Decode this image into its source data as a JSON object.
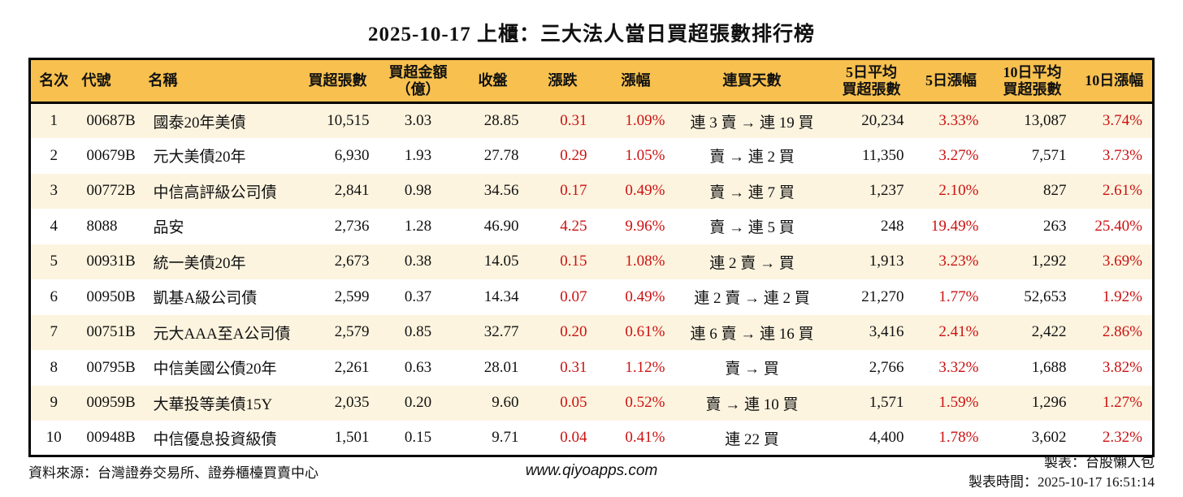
{
  "title": "2025-10-17 上櫃：三大法人當日買超張數排行榜",
  "colors": {
    "header_bg": "#F7C04F",
    "row_alt_bg": "#FCF4DF",
    "up_red": "#CC1111"
  },
  "table": {
    "columns": [
      {
        "id": "rank",
        "label": "名次",
        "align": "center",
        "red": false
      },
      {
        "id": "code",
        "label": "代號",
        "align": "left",
        "red": false
      },
      {
        "id": "name",
        "label": "名稱",
        "align": "left",
        "red": false
      },
      {
        "id": "net_buy",
        "label": "買超張數",
        "align": "right",
        "red": false
      },
      {
        "id": "amount",
        "label": "買超金額\n（億）",
        "align": "center",
        "red": false
      },
      {
        "id": "close",
        "label": "收盤",
        "align": "right",
        "red": false
      },
      {
        "id": "change",
        "label": "漲跌",
        "align": "right",
        "red": true
      },
      {
        "id": "change_pct",
        "label": "漲幅",
        "align": "right",
        "red": true
      },
      {
        "id": "streak",
        "label": "連買天數",
        "align": "center",
        "red": false
      },
      {
        "id": "avg5",
        "label": "5日平均\n買超張數",
        "align": "right",
        "red": false
      },
      {
        "id": "pct5",
        "label": "5日漲幅",
        "align": "right",
        "red": true
      },
      {
        "id": "avg10",
        "label": "10日平均\n買超張數",
        "align": "right",
        "red": false
      },
      {
        "id": "pct10",
        "label": "10日漲幅",
        "align": "right",
        "red": true
      }
    ],
    "rows": [
      {
        "rank": "1",
        "code": "00687B",
        "name": "國泰20年美債",
        "net_buy": "10,515",
        "amount": "3.03",
        "close": "28.85",
        "change": "0.31",
        "change_pct": "1.09%",
        "streak": "連 3 賣 → 連 19 買",
        "avg5": "20,234",
        "pct5": "3.33%",
        "avg10": "13,087",
        "pct10": "3.74%"
      },
      {
        "rank": "2",
        "code": "00679B",
        "name": "元大美債20年",
        "net_buy": "6,930",
        "amount": "1.93",
        "close": "27.78",
        "change": "0.29",
        "change_pct": "1.05%",
        "streak": "賣 → 連 2 買",
        "avg5": "11,350",
        "pct5": "3.27%",
        "avg10": "7,571",
        "pct10": "3.73%"
      },
      {
        "rank": "3",
        "code": "00772B",
        "name": "中信高評級公司債",
        "net_buy": "2,841",
        "amount": "0.98",
        "close": "34.56",
        "change": "0.17",
        "change_pct": "0.49%",
        "streak": "賣 → 連 7 買",
        "avg5": "1,237",
        "pct5": "2.10%",
        "avg10": "827",
        "pct10": "2.61%"
      },
      {
        "rank": "4",
        "code": "8088",
        "name": "品安",
        "net_buy": "2,736",
        "amount": "1.28",
        "close": "46.90",
        "change": "4.25",
        "change_pct": "9.96%",
        "streak": "賣 → 連 5 買",
        "avg5": "248",
        "pct5": "19.49%",
        "avg10": "263",
        "pct10": "25.40%"
      },
      {
        "rank": "5",
        "code": "00931B",
        "name": "統一美債20年",
        "net_buy": "2,673",
        "amount": "0.38",
        "close": "14.05",
        "change": "0.15",
        "change_pct": "1.08%",
        "streak": "連 2 賣 → 買",
        "avg5": "1,913",
        "pct5": "3.23%",
        "avg10": "1,292",
        "pct10": "3.69%"
      },
      {
        "rank": "6",
        "code": "00950B",
        "name": "凱基A級公司債",
        "net_buy": "2,599",
        "amount": "0.37",
        "close": "14.34",
        "change": "0.07",
        "change_pct": "0.49%",
        "streak": "連 2 賣 → 連 2 買",
        "avg5": "21,270",
        "pct5": "1.77%",
        "avg10": "52,653",
        "pct10": "1.92%"
      },
      {
        "rank": "7",
        "code": "00751B",
        "name": "元大AAA至A公司債",
        "net_buy": "2,579",
        "amount": "0.85",
        "close": "32.77",
        "change": "0.20",
        "change_pct": "0.61%",
        "streak": "連 6 賣 → 連 16 買",
        "avg5": "3,416",
        "pct5": "2.41%",
        "avg10": "2,422",
        "pct10": "2.86%"
      },
      {
        "rank": "8",
        "code": "00795B",
        "name": "中信美國公債20年",
        "net_buy": "2,261",
        "amount": "0.63",
        "close": "28.01",
        "change": "0.31",
        "change_pct": "1.12%",
        "streak": "賣 → 買",
        "avg5": "2,766",
        "pct5": "3.32%",
        "avg10": "1,688",
        "pct10": "3.82%"
      },
      {
        "rank": "9",
        "code": "00959B",
        "name": "大華投等美債15Y",
        "net_buy": "2,035",
        "amount": "0.20",
        "close": "9.60",
        "change": "0.05",
        "change_pct": "0.52%",
        "streak": "賣 → 連 10 買",
        "avg5": "1,571",
        "pct5": "1.59%",
        "avg10": "1,296",
        "pct10": "1.27%"
      },
      {
        "rank": "10",
        "code": "00948B",
        "name": "中信優息投資級債",
        "net_buy": "1,501",
        "amount": "0.15",
        "close": "9.71",
        "change": "0.04",
        "change_pct": "0.41%",
        "streak": "連 22 買",
        "avg5": "4,400",
        "pct5": "1.78%",
        "avg10": "3,602",
        "pct10": "2.32%"
      }
    ]
  },
  "footer": {
    "source": "資料來源：台灣證券交易所、證券櫃檯買賣中心",
    "website": "www.qiyoapps.com",
    "maker": "製表：台股懶人包",
    "time": "製表時間：2025-10-17 16:51:14"
  }
}
